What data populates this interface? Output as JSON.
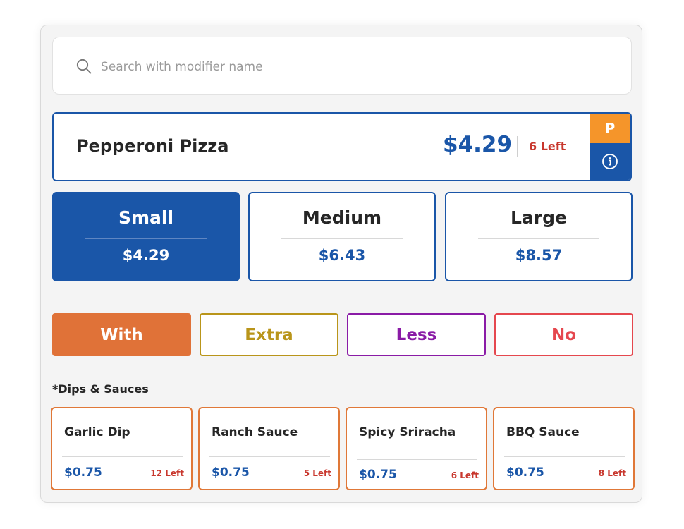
{
  "search": {
    "placeholder": "Search with modifier name",
    "icon": "search-icon"
  },
  "product": {
    "name": "Pepperoni Pizza",
    "price": "$4.29",
    "stock": "6 Left",
    "badge": "P",
    "badge_color": "#f5952a",
    "accent_color": "#1a56a8"
  },
  "sizes": [
    {
      "label": "Small",
      "price": "$4.29",
      "selected": true
    },
    {
      "label": "Medium",
      "price": "$6.43",
      "selected": false
    },
    {
      "label": "Large",
      "price": "$8.57",
      "selected": false
    }
  ],
  "qualifiers": [
    {
      "label": "With",
      "color": "#e07238",
      "selected": true
    },
    {
      "label": "Extra",
      "color": "#b9951a",
      "selected": false
    },
    {
      "label": "Less",
      "color": "#8a1ba6",
      "selected": false
    },
    {
      "label": "No",
      "color": "#e5474e",
      "selected": false
    }
  ],
  "modifiers": {
    "title": "*Dips & Sauces",
    "items": [
      {
        "name": "Garlic Dip",
        "price": "$0.75",
        "left": "12 Left"
      },
      {
        "name": "Ranch Sauce",
        "price": "$0.75",
        "left": "5 Left"
      },
      {
        "name": "Spicy Sriracha",
        "price": "$0.75",
        "left": "6 Left"
      },
      {
        "name": "BBQ Sauce",
        "price": "$0.75",
        "left": "8 Left"
      }
    ]
  }
}
